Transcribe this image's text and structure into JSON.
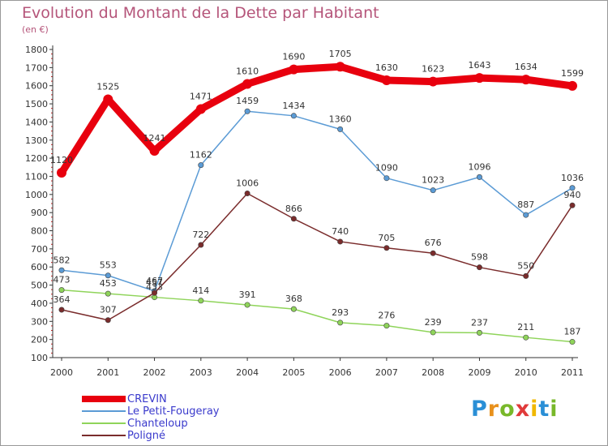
{
  "header": {
    "title": "Evolution du Montant de la Dette par Habitant",
    "unit": "(en €)"
  },
  "logo": {
    "letters": [
      "P",
      "r",
      "o",
      "x",
      "i",
      "t",
      "i"
    ],
    "colors": [
      "#2a8fd6",
      "#e8911c",
      "#78b82a",
      "#e03a3a",
      "#f0b800",
      "#2a8fd6",
      "#78b82a"
    ]
  },
  "chart_data": {
    "type": "line",
    "title": "Evolution du Montant de la Dette par Habitant",
    "subtitle": "(en €)",
    "xlabel": "",
    "ylabel": "",
    "categories": [
      "2000",
      "2001",
      "2002",
      "2003",
      "2004",
      "2005",
      "2006",
      "2007",
      "2008",
      "2009",
      "2010",
      "2011"
    ],
    "ylim": [
      100,
      1800
    ],
    "yticks": [
      "100",
      "200",
      "300",
      "400",
      "500",
      "600",
      "700",
      "800",
      "900",
      "1000",
      "1100",
      "1200",
      "1300",
      "1400",
      "1500",
      "1600",
      "1700",
      "1800"
    ],
    "grid": false,
    "legend": "bottom-left",
    "series": [
      {
        "name": "CREVIN",
        "color": "#e8000e",
        "values": [
          1120,
          1525,
          1241,
          1471,
          1610,
          1690,
          1705,
          1630,
          1623,
          1643,
          1634,
          1599
        ],
        "labels": [
          "1120",
          "1525",
          "1241",
          "1471",
          "1610",
          "1690",
          "1705",
          "1630",
          "1623",
          "1643",
          "1634",
          "1599"
        ]
      },
      {
        "name": "Le Petit-Fougeray",
        "color": "#5b9bd5",
        "values": [
          582,
          553,
          467,
          1162,
          1459,
          1434,
          1360,
          1090,
          1023,
          1096,
          887,
          1036
        ],
        "labels": [
          "582",
          "553",
          "467",
          "1162",
          "1459",
          "1434",
          "1360",
          "1090",
          "1023",
          "1096",
          "887",
          "1036"
        ]
      },
      {
        "name": "Chanteloup",
        "color": "#8fd45a",
        "values": [
          473,
          453,
          433,
          414,
          391,
          368,
          293,
          276,
          239,
          237,
          211,
          187
        ],
        "labels": [
          "473",
          "453",
          "433",
          "414",
          "391",
          "368",
          "293",
          "276",
          "239",
          "237",
          "211",
          "187"
        ]
      },
      {
        "name": "Poligné",
        "color": "#7a2c2c",
        "values": [
          364,
          307,
          457,
          722,
          1006,
          866,
          740,
          705,
          676,
          598,
          550,
          940
        ],
        "labels": [
          "364",
          "307",
          "457",
          "722",
          "1006",
          "866",
          "740",
          "705",
          "676",
          "598",
          "550",
          "940"
        ]
      }
    ]
  }
}
